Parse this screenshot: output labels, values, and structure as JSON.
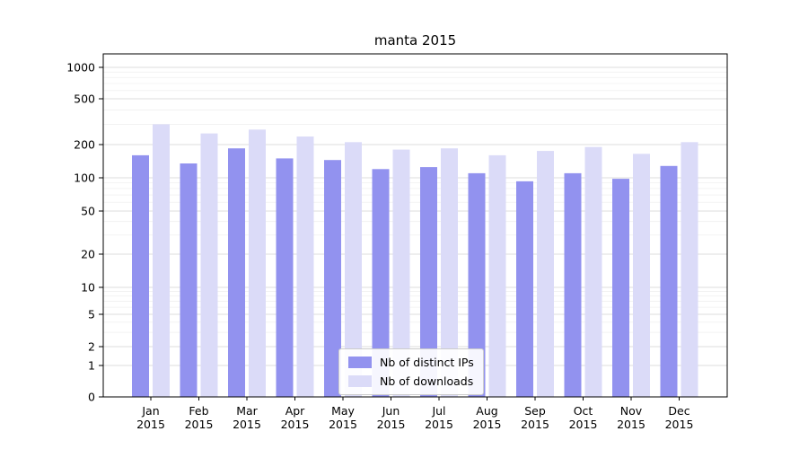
{
  "chart_data": {
    "type": "bar",
    "title": "manta 2015",
    "year_label": "2015",
    "categories": [
      "Jan",
      "Feb",
      "Mar",
      "Apr",
      "May",
      "Jun",
      "Jul",
      "Aug",
      "Sep",
      "Oct",
      "Nov",
      "Dec"
    ],
    "series": [
      {
        "name": "Nb of distinct IPs",
        "color": "#9292ef",
        "values": [
          160,
          135,
          185,
          150,
          145,
          120,
          125,
          110,
          93,
          110,
          98,
          128
        ]
      },
      {
        "name": "Nb of downloads",
        "color": "#dbdbf8",
        "values": [
          300,
          250,
          270,
          235,
          210,
          180,
          185,
          160,
          175,
          190,
          165,
          210
        ]
      }
    ],
    "y_ticks": [
      1000,
      500,
      200,
      100,
      50,
      20,
      10,
      5,
      2,
      1,
      0
    ],
    "y_scale": "log",
    "ylim": [
      0,
      1000
    ],
    "grid": true,
    "legend_position": "lower-center-inside",
    "colors": {
      "grid_major": "#dcdcdc",
      "grid_minor": "#f0f0f0",
      "axis": "#000000",
      "background": "#ffffff"
    }
  }
}
